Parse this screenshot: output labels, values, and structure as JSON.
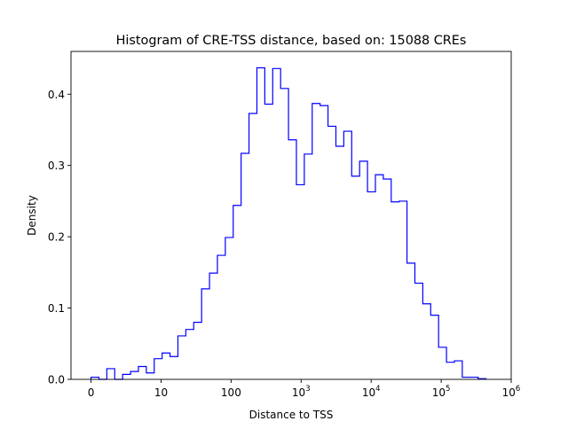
{
  "chart_data": {
    "type": "histogram-step",
    "title": "Histogram of CRE-TSS distance, based on: 15088 CREs",
    "xlabel": "Distance to TSS",
    "ylabel": "Density",
    "x_scale": "log10(distance)",
    "xlim": [
      -0.286,
      6.0
    ],
    "ylim": [
      0,
      0.46
    ],
    "grid": false,
    "line_color": "#0000ff",
    "bin_start": 0,
    "bin_width": 0.1128,
    "values": [
      0.003,
      0.0,
      0.015,
      0.0,
      0.007,
      0.011,
      0.018,
      0.009,
      0.029,
      0.037,
      0.032,
      0.061,
      0.07,
      0.08,
      0.127,
      0.149,
      0.174,
      0.199,
      0.244,
      0.317,
      0.373,
      0.437,
      0.386,
      0.436,
      0.408,
      0.336,
      0.273,
      0.316,
      0.387,
      0.384,
      0.355,
      0.327,
      0.348,
      0.285,
      0.306,
      0.263,
      0.287,
      0.281,
      0.249,
      0.25,
      0.163,
      0.135,
      0.106,
      0.09,
      0.045,
      0.024,
      0.026,
      0.003,
      0.003,
      0.001
    ],
    "xticks": [
      {
        "value": 0,
        "label": "0",
        "exp": ""
      },
      {
        "value": 1,
        "label": "10",
        "exp": ""
      },
      {
        "value": 2,
        "label": "100",
        "exp": ""
      },
      {
        "value": 3,
        "label": "10",
        "exp": "3"
      },
      {
        "value": 4,
        "label": "10",
        "exp": "4"
      },
      {
        "value": 5,
        "label": "10",
        "exp": "5"
      },
      {
        "value": 6,
        "label": "10",
        "exp": "6"
      }
    ],
    "yticks": [
      {
        "value": 0,
        "label": "0.0"
      },
      {
        "value": 0.1,
        "label": "0.1"
      },
      {
        "value": 0.2,
        "label": "0.2"
      },
      {
        "value": 0.3,
        "label": "0.3"
      },
      {
        "value": 0.4,
        "label": "0.4"
      }
    ]
  }
}
